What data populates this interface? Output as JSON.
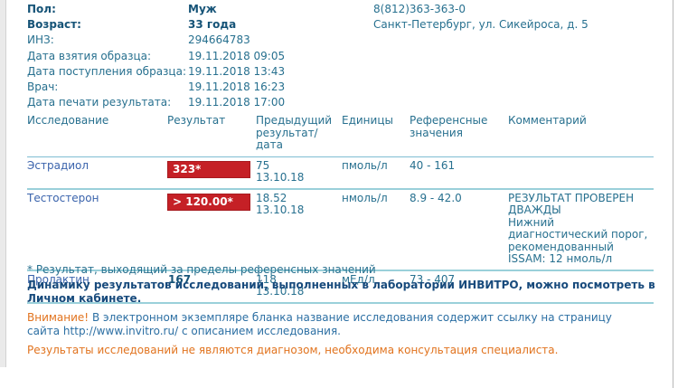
{
  "patient": {
    "rows": [
      {
        "label": "Пол:",
        "value": "Муж"
      },
      {
        "label": "Возраст:",
        "value": "33 года"
      },
      {
        "label": "ИНЗ:",
        "value": "294664783"
      },
      {
        "label": "Дата взятия образца:",
        "value": "19.11.2018 09:05"
      },
      {
        "label": "Дата поступления образца:",
        "value": "19.11.2018 13:43"
      },
      {
        "label": "Врач:",
        "value": "19.11.2018 16:23"
      },
      {
        "label": "Дата печати результата:",
        "value": "19.11.2018 17:00"
      }
    ]
  },
  "contact": {
    "phone": "8(812)363-363-0",
    "address": "Санкт-Петербург, ул. Сикейроса, д. 5"
  },
  "table": {
    "headers": {
      "test": "Исследование",
      "result": "Результат",
      "previous": "Предыдущий результат/дата",
      "units": "Единицы",
      "reference": "Референсные значения",
      "comment": "Комментарий"
    },
    "rows": [
      {
        "name": "Эстрадиол",
        "result": "323*",
        "previous": "75",
        "previous_date": "13.10.18",
        "units": "пмоль/л",
        "reference": "40 - 161",
        "comment_1": "",
        "comment_2": ""
      },
      {
        "name": "Тестостерон",
        "result": "> 120.00*",
        "previous": "18.52",
        "previous_date": "13.10.18",
        "units": "нмоль/л",
        "reference": "8.9 - 42.0",
        "comment_1": "РЕЗУЛЬТАТ ПРОВЕРЕН ДВАЖДЫ",
        "comment_2": "Нижний диагностический порог, рекомендованный ISSAM: 12 нмоль/л"
      },
      {
        "name": "Пролактин",
        "result": "167",
        "previous": "118",
        "previous_date": "13.10.18",
        "units": "мЕд/л",
        "reference": "73 - 407",
        "comment_1": "",
        "comment_2": ""
      }
    ]
  },
  "notes": {
    "footnote": "* Результат, выходящий за пределы референсных значений",
    "dynamics": "Динамику результатов исследований, выполненных в лаборатории ИНВИТРО, можно посмотреть в Личном кабинете.",
    "warning_label": "Внимание!",
    "warning_text": "В электронном экземпляре бланка название исследования содержит ссылку на страницу сайта",
    "warning_url": "http://www.invitro.ru/",
    "warning_tail": "с описанием исследования.",
    "disclaimer": "Результаты исследований не являются диагнозом, необходима консультация специалиста."
  },
  "colors": {
    "accent_red": "#c52026",
    "accent_orange": "#e1731e",
    "text_teal": "#27708f",
    "text_navy": "#155377",
    "link_blue": "#3a63ac",
    "table_line": "#9ad0da"
  }
}
